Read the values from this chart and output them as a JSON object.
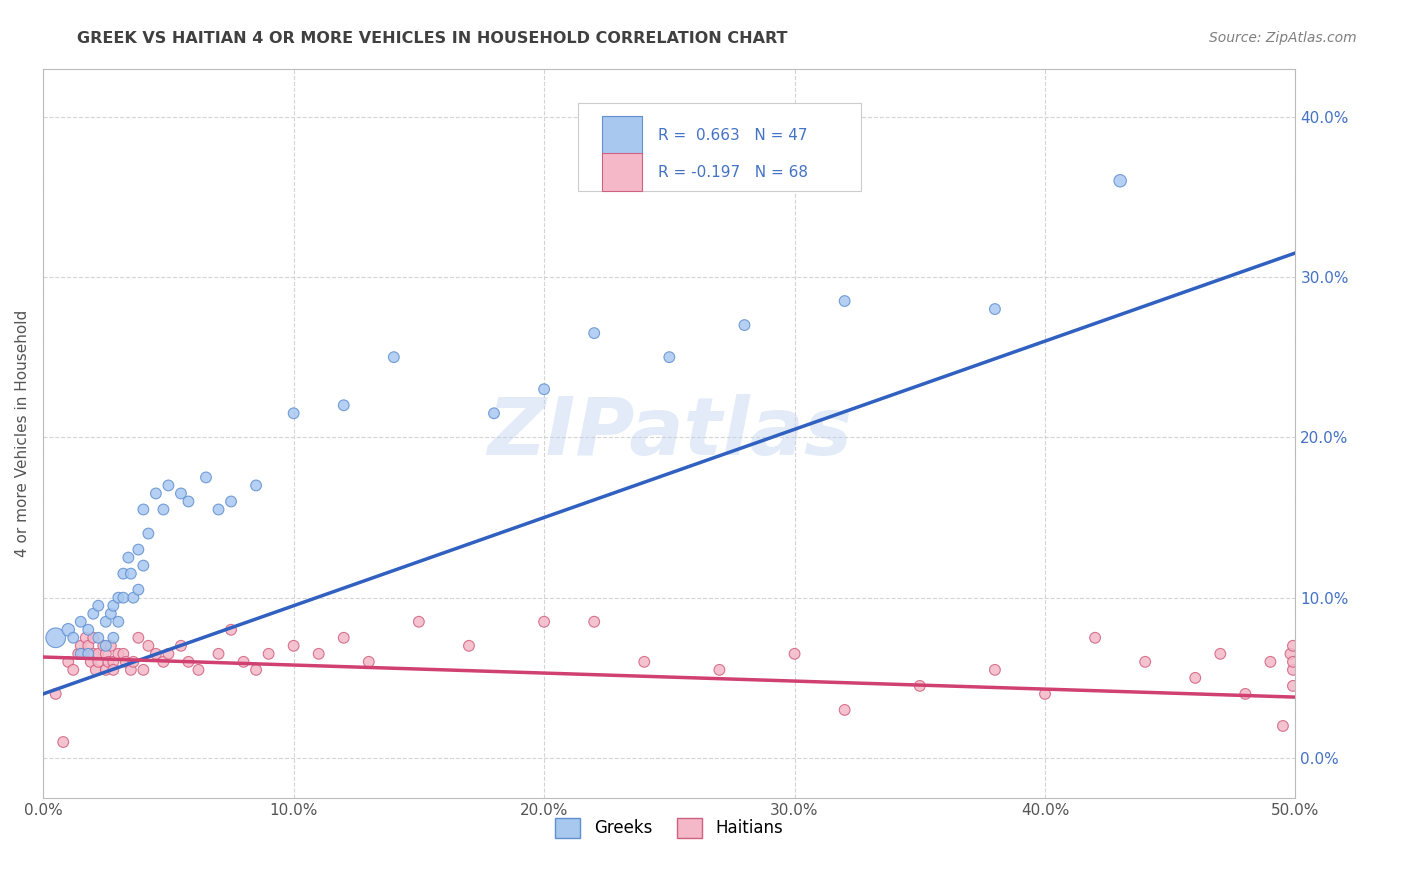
{
  "title": "GREEK VS HAITIAN 4 OR MORE VEHICLES IN HOUSEHOLD CORRELATION CHART",
  "source": "Source: ZipAtlas.com",
  "ylabel": "4 or more Vehicles in Household",
  "xlim": [
    0.0,
    0.5
  ],
  "ylim": [
    -0.025,
    0.43
  ],
  "xticks": [
    0.0,
    0.1,
    0.2,
    0.3,
    0.4,
    0.5
  ],
  "yticks": [
    0.0,
    0.1,
    0.2,
    0.3,
    0.4
  ],
  "ytick_labels_right": [
    "0.0%",
    "10.0%",
    "20.0%",
    "30.0%",
    "40.0%"
  ],
  "xtick_labels": [
    "0.0%",
    "10.0%",
    "20.0%",
    "30.0%",
    "40.0%",
    "50.0%"
  ],
  "watermark": "ZIPatlas",
  "blue_color": "#a8c8f0",
  "pink_color": "#f4b8c8",
  "blue_edge_color": "#6090d0",
  "pink_edge_color": "#d06080",
  "blue_line_color": "#3060c0",
  "pink_line_color": "#d04070",
  "grid_color": "#d0d0d0",
  "background_color": "#ffffff",
  "title_color": "#404040",
  "source_color": "#808080",
  "legend_text_color": "#4472c4",
  "greek_scatter_x": [
    0.005,
    0.01,
    0.012,
    0.015,
    0.015,
    0.018,
    0.018,
    0.02,
    0.022,
    0.022,
    0.025,
    0.025,
    0.027,
    0.028,
    0.028,
    0.03,
    0.03,
    0.032,
    0.032,
    0.034,
    0.035,
    0.036,
    0.038,
    0.038,
    0.04,
    0.04,
    0.042,
    0.045,
    0.048,
    0.05,
    0.055,
    0.058,
    0.065,
    0.07,
    0.075,
    0.085,
    0.1,
    0.12,
    0.14,
    0.18,
    0.2,
    0.22,
    0.25,
    0.28,
    0.32,
    0.38,
    0.43
  ],
  "greek_scatter_y": [
    0.075,
    0.08,
    0.075,
    0.085,
    0.065,
    0.08,
    0.065,
    0.09,
    0.095,
    0.075,
    0.085,
    0.07,
    0.09,
    0.095,
    0.075,
    0.1,
    0.085,
    0.115,
    0.1,
    0.125,
    0.115,
    0.1,
    0.105,
    0.13,
    0.155,
    0.12,
    0.14,
    0.165,
    0.155,
    0.17,
    0.165,
    0.16,
    0.175,
    0.155,
    0.16,
    0.17,
    0.215,
    0.22,
    0.25,
    0.215,
    0.23,
    0.265,
    0.25,
    0.27,
    0.285,
    0.28,
    0.36
  ],
  "greek_scatter_size": [
    200,
    80,
    60,
    60,
    60,
    60,
    60,
    60,
    60,
    60,
    60,
    60,
    60,
    60,
    60,
    60,
    60,
    60,
    60,
    60,
    60,
    60,
    60,
    60,
    60,
    60,
    60,
    60,
    60,
    60,
    60,
    60,
    60,
    60,
    60,
    60,
    60,
    60,
    60,
    60,
    60,
    60,
    60,
    60,
    60,
    60,
    80
  ],
  "haitian_scatter_x": [
    0.005,
    0.008,
    0.01,
    0.012,
    0.014,
    0.015,
    0.016,
    0.017,
    0.018,
    0.019,
    0.02,
    0.02,
    0.021,
    0.022,
    0.022,
    0.024,
    0.025,
    0.025,
    0.026,
    0.027,
    0.028,
    0.028,
    0.03,
    0.032,
    0.033,
    0.035,
    0.036,
    0.038,
    0.04,
    0.042,
    0.045,
    0.048,
    0.05,
    0.055,
    0.058,
    0.062,
    0.07,
    0.075,
    0.08,
    0.085,
    0.09,
    0.1,
    0.11,
    0.12,
    0.13,
    0.15,
    0.17,
    0.2,
    0.22,
    0.24,
    0.27,
    0.3,
    0.32,
    0.35,
    0.38,
    0.4,
    0.42,
    0.44,
    0.46,
    0.47,
    0.48,
    0.49,
    0.495,
    0.498,
    0.499,
    0.499,
    0.499,
    0.499
  ],
  "haitian_scatter_y": [
    0.04,
    0.01,
    0.06,
    0.055,
    0.065,
    0.07,
    0.065,
    0.075,
    0.07,
    0.06,
    0.065,
    0.075,
    0.055,
    0.06,
    0.065,
    0.07,
    0.065,
    0.055,
    0.06,
    0.07,
    0.06,
    0.055,
    0.065,
    0.065,
    0.06,
    0.055,
    0.06,
    0.075,
    0.055,
    0.07,
    0.065,
    0.06,
    0.065,
    0.07,
    0.06,
    0.055,
    0.065,
    0.08,
    0.06,
    0.055,
    0.065,
    0.07,
    0.065,
    0.075,
    0.06,
    0.085,
    0.07,
    0.085,
    0.085,
    0.06,
    0.055,
    0.065,
    0.03,
    0.045,
    0.055,
    0.04,
    0.075,
    0.06,
    0.05,
    0.065,
    0.04,
    0.06,
    0.02,
    0.065,
    0.055,
    0.07,
    0.06,
    0.045
  ],
  "haitian_scatter_size": [
    60,
    60,
    60,
    60,
    60,
    60,
    60,
    60,
    60,
    60,
    60,
    60,
    60,
    60,
    60,
    60,
    60,
    60,
    60,
    60,
    60,
    60,
    60,
    60,
    60,
    60,
    60,
    60,
    60,
    60,
    60,
    60,
    60,
    60,
    60,
    60,
    60,
    60,
    60,
    60,
    60,
    60,
    60,
    60,
    60,
    60,
    60,
    60,
    60,
    60,
    60,
    60,
    60,
    60,
    60,
    60,
    60,
    60,
    60,
    60,
    60,
    60,
    60,
    60,
    60,
    60,
    60,
    60
  ],
  "blue_trendline_x": [
    0.0,
    0.5
  ],
  "blue_trendline_y": [
    0.04,
    0.315
  ],
  "pink_trendline_x": [
    0.0,
    0.5
  ],
  "pink_trendline_y": [
    0.063,
    0.038
  ]
}
